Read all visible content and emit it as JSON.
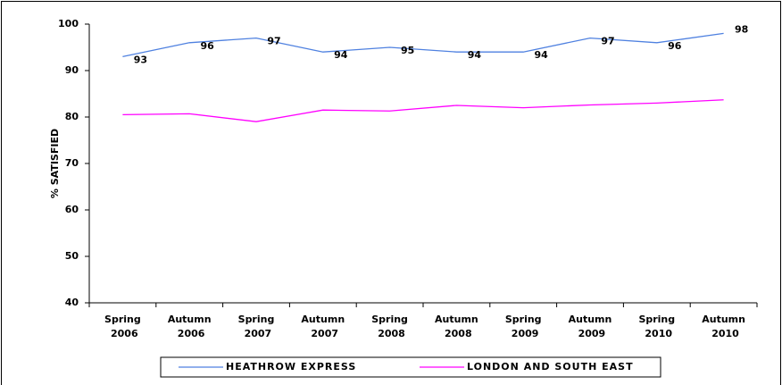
{
  "chart_data": {
    "type": "line",
    "y_label": "% SATISFIED",
    "categories": [
      "Spring 2006",
      "Autumn 2006",
      "Spring 2007",
      "Autumn 2007",
      "Spring 2008",
      "Autumn 2008",
      "Spring 2009",
      "Autumn 2009",
      "Spring 2010",
      "Autumn 2010"
    ],
    "series": [
      {
        "name": "HEATHROW EXPRESS",
        "color": "#4f81e0",
        "values": [
          93,
          96,
          97,
          94,
          95,
          94,
          94,
          97,
          96,
          98
        ],
        "show_labels": true
      },
      {
        "name": "LONDON AND SOUTH EAST",
        "color": "#ff00ff",
        "values": [
          80.5,
          80.7,
          79,
          81.5,
          81.3,
          82.5,
          82,
          82.6,
          83,
          83.7
        ],
        "show_labels": false
      }
    ],
    "ylim": [
      40,
      100
    ],
    "yticks": [
      40,
      50,
      60,
      70,
      80,
      90,
      100
    ],
    "grid": false,
    "legend": "bottom"
  }
}
